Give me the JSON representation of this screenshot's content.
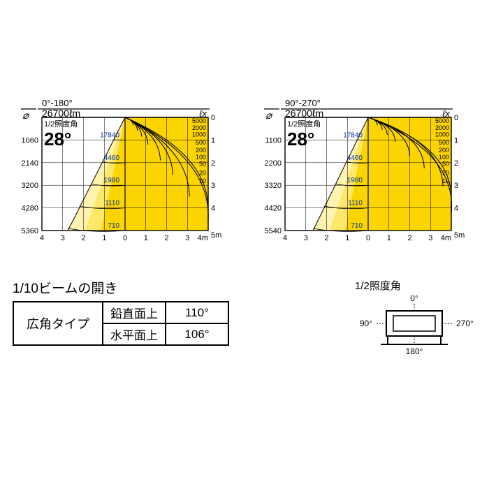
{
  "charts": [
    {
      "plane_label": "0°-180°",
      "lumens": "26700ℓm",
      "half_angle_label": "1/2照度角",
      "half_angle_value": "28°",
      "lux_unit": "ℓx",
      "left_y_ticks": [
        "1060",
        "2140",
        "3200",
        "4280",
        "5360"
      ],
      "right_y_ticks": [
        "0",
        "1",
        "2",
        "3",
        "4",
        "5m"
      ],
      "x_ticks_left": [
        "4",
        "3",
        "2",
        "1",
        "0"
      ],
      "x_ticks_right": [
        "1",
        "2",
        "3",
        "4m"
      ],
      "iso_labels_right": [
        "5000",
        "2000",
        "1000",
        "500",
        "200",
        "100",
        "50",
        "20",
        "10"
      ],
      "cone_values": [
        "17840",
        "4460",
        "1980",
        "1110",
        "710"
      ],
      "colors": {
        "cone_light": "#fff3b0",
        "cone_mid": "#fee869",
        "cone_dark": "#fcd400",
        "line": "#000000",
        "grid": "#000000"
      },
      "iso_curves": [
        {
          "endx": 0.4,
          "endy": 0.35,
          "cpx": 0.38,
          "cpy": 0.12
        },
        {
          "endx": 0.6,
          "endy": 0.6,
          "cpx": 0.58,
          "cpy": 0.2
        },
        {
          "endx": 0.8,
          "endy": 0.85,
          "cpx": 0.78,
          "cpy": 0.3
        },
        {
          "endx": 1.1,
          "endy": 1.2,
          "cpx": 1.08,
          "cpy": 0.45
        },
        {
          "endx": 1.7,
          "endy": 1.9,
          "cpx": 1.65,
          "cpy": 0.7
        },
        {
          "endx": 2.3,
          "endy": 2.55,
          "cpx": 2.25,
          "cpy": 0.95
        },
        {
          "endx": 3.1,
          "endy": 3.5,
          "cpx": 3.05,
          "cpy": 1.35
        },
        {
          "endx": 4.0,
          "endy": 3.95,
          "cpx": 3.9,
          "cpy": 1.55
        },
        {
          "endx": 4.0,
          "endy": 4.55,
          "cpx": 4.15,
          "cpy": 1.8
        }
      ],
      "cone_half_width_per_y": 0.55
    },
    {
      "plane_label": "90°-270°",
      "lumens": "26700ℓm",
      "half_angle_label": "1/2照度角",
      "half_angle_value": "28°",
      "lux_unit": "ℓx",
      "left_y_ticks": [
        "1100",
        "2200",
        "3320",
        "4420",
        "5540"
      ],
      "right_y_ticks": [
        "0",
        "1",
        "2",
        "3",
        "4",
        "5m"
      ],
      "x_ticks_left": [
        "4",
        "3",
        "2",
        "1",
        "0"
      ],
      "x_ticks_right": [
        "1",
        "2",
        "3",
        "4m"
      ],
      "iso_labels_right": [
        "5000",
        "2000",
        "1000",
        "500",
        "200",
        "100",
        "50",
        "20",
        "10"
      ],
      "cone_values": [
        "17840",
        "4460",
        "1980",
        "1110",
        "710"
      ],
      "colors": {
        "cone_light": "#fff3b0",
        "cone_mid": "#fee869",
        "cone_dark": "#fcd400",
        "line": "#000000",
        "grid": "#000000"
      },
      "iso_curves": [
        {
          "endx": 0.45,
          "endy": 0.35,
          "cpx": 0.43,
          "cpy": 0.1
        },
        {
          "endx": 0.68,
          "endy": 0.55,
          "cpx": 0.66,
          "cpy": 0.17
        },
        {
          "endx": 0.92,
          "endy": 0.78,
          "cpx": 0.9,
          "cpy": 0.25
        },
        {
          "endx": 1.3,
          "endy": 1.08,
          "cpx": 1.28,
          "cpy": 0.36
        },
        {
          "endx": 2.0,
          "endy": 1.7,
          "cpx": 1.95,
          "cpy": 0.58
        },
        {
          "endx": 2.7,
          "endy": 2.25,
          "cpx": 2.65,
          "cpy": 0.78
        },
        {
          "endx": 3.6,
          "endy": 3.05,
          "cpx": 3.55,
          "cpy": 1.08
        },
        {
          "endx": 4.0,
          "endy": 3.6,
          "cpx": 4.05,
          "cpy": 1.28
        },
        {
          "endx": 4.0,
          "endy": 4.3,
          "cpx": 4.3,
          "cpy": 1.55
        }
      ],
      "cone_half_width_per_y": 0.53
    }
  ],
  "diameter_symbol": "⌀",
  "beam_spread": {
    "title": "1/10ビームの開き",
    "type_label": "広角タイプ",
    "rows": [
      {
        "plane": "鉛直面上",
        "angle": "110°"
      },
      {
        "plane": "水平面上",
        "angle": "106°"
      }
    ]
  },
  "angle_diagram": {
    "title": "1/2照度角",
    "labels": {
      "top": "0°",
      "right": "270°",
      "bottom": "180°",
      "left": "90°"
    }
  },
  "axis": {
    "x_min": -4,
    "x_max": 4,
    "y_min": 0,
    "y_max": 5
  }
}
